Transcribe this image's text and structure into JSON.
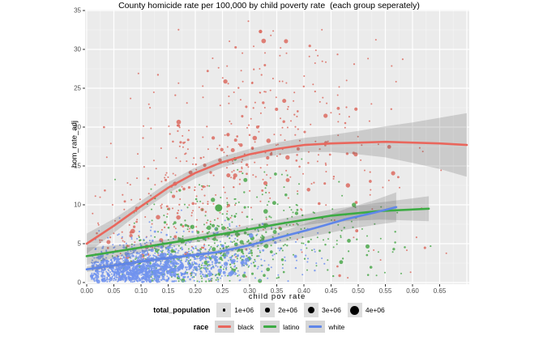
{
  "chart_data": {
    "type": "scatter",
    "title": "County homicide rate per 100,000 by child poverty rate  (each group seperately)",
    "xlabel": "child pov rate",
    "ylabel": "hom_rate_adj",
    "xlim": [
      0,
      0.7
    ],
    "ylim": [
      0,
      35
    ],
    "panel_bg": "#EBEBEB",
    "grid": {
      "major_color": "#FFFFFF",
      "minor_color": "#F4F4F4",
      "legend_position": "bottom"
    },
    "x_ticks": [
      {
        "v": 0.0,
        "label": "0.00"
      },
      {
        "v": 0.05,
        "label": "0.05"
      },
      {
        "v": 0.1,
        "label": "0.10"
      },
      {
        "v": 0.15,
        "label": "0.15"
      },
      {
        "v": 0.2,
        "label": "0.20"
      },
      {
        "v": 0.25,
        "label": "0.25"
      },
      {
        "v": 0.3,
        "label": "0.30"
      },
      {
        "v": 0.35,
        "label": "0.35"
      },
      {
        "v": 0.4,
        "label": "0.40"
      },
      {
        "v": 0.45,
        "label": "0.45"
      },
      {
        "v": 0.5,
        "label": "0.50"
      },
      {
        "v": 0.55,
        "label": "0.55"
      },
      {
        "v": 0.6,
        "label": "0.60"
      },
      {
        "v": 0.65,
        "label": "0.65"
      },
      {
        "v": 0.7,
        "label": ""
      }
    ],
    "y_ticks": [
      {
        "v": 0,
        "label": "0"
      },
      {
        "v": 5,
        "label": "5"
      },
      {
        "v": 10,
        "label": "10"
      },
      {
        "v": 15,
        "label": "15"
      },
      {
        "v": 20,
        "label": "20"
      },
      {
        "v": 25,
        "label": "25"
      },
      {
        "v": 30,
        "label": "30"
      },
      {
        "v": 35,
        "label": "35"
      }
    ],
    "band_fill": "rgba(90,90,90,0.22)",
    "series": [
      {
        "name": "black",
        "point_color": "#DC6B60",
        "line_color": "#E9675D",
        "smooth": {
          "x": [
            0,
            0.05,
            0.1,
            0.15,
            0.2,
            0.25,
            0.3,
            0.35,
            0.4,
            0.45,
            0.5,
            0.55,
            0.6,
            0.65,
            0.7
          ],
          "y": [
            5.0,
            7.3,
            9.8,
            12.2,
            14.1,
            15.5,
            16.5,
            17.2,
            17.7,
            17.9,
            18.0,
            18.1,
            18.0,
            17.9,
            17.7
          ],
          "ci": [
            1.3,
            0.9,
            0.7,
            0.7,
            0.7,
            0.7,
            0.7,
            0.8,
            0.9,
            1.1,
            1.5,
            2.0,
            2.6,
            3.3,
            4.1
          ]
        },
        "cloud": [
          {
            "cx": 0.18,
            "cy": 8,
            "sx": 0.08,
            "sy": 4,
            "n": 120
          },
          {
            "cx": 0.25,
            "cy": 15,
            "sx": 0.1,
            "sy": 5,
            "n": 140
          },
          {
            "cx": 0.35,
            "cy": 19,
            "sx": 0.11,
            "sy": 5.5,
            "n": 110
          },
          {
            "cx": 0.45,
            "cy": 14,
            "sx": 0.11,
            "sy": 6.5,
            "n": 70
          },
          {
            "cx": 0.3,
            "cy": 27,
            "sx": 0.1,
            "sy": 4,
            "n": 45
          },
          {
            "cx": 0.08,
            "cy": 4.5,
            "sx": 0.045,
            "sy": 2.5,
            "n": 50
          }
        ],
        "clip": {
          "x": [
            0.01,
            0.695
          ],
          "y": [
            0.15,
            34.5
          ]
        }
      },
      {
        "name": "latino",
        "point_color": "#4BA84B",
        "line_color": "#3DAB44",
        "smooth": {
          "x": [
            0,
            0.09,
            0.18,
            0.27,
            0.36,
            0.45,
            0.54,
            0.63
          ],
          "y": [
            3.4,
            4.4,
            5.4,
            6.5,
            7.6,
            8.6,
            9.2,
            9.5
          ],
          "ci": [
            1.1,
            0.6,
            0.45,
            0.5,
            0.6,
            0.8,
            1.1,
            1.6
          ]
        },
        "cloud": [
          {
            "cx": 0.16,
            "cy": 2.6,
            "sx": 0.06,
            "sy": 1.4,
            "n": 170
          },
          {
            "cx": 0.24,
            "cy": 4.8,
            "sx": 0.08,
            "sy": 2.2,
            "n": 170
          },
          {
            "cx": 0.33,
            "cy": 6.5,
            "sx": 0.09,
            "sy": 2.8,
            "n": 120
          },
          {
            "cx": 0.28,
            "cy": 10.5,
            "sx": 0.09,
            "sy": 2.6,
            "n": 50
          },
          {
            "cx": 0.46,
            "cy": 5.5,
            "sx": 0.08,
            "sy": 2.2,
            "n": 50
          }
        ],
        "clip": {
          "x": [
            0.02,
            0.635
          ],
          "y": [
            0.12,
            16
          ]
        }
      },
      {
        "name": "white",
        "point_color": "#7193EE",
        "line_color": "#5F86E9",
        "smooth": {
          "x": [
            0,
            0.06,
            0.12,
            0.18,
            0.24,
            0.3,
            0.36,
            0.42,
            0.48,
            0.53,
            0.57
          ],
          "y": [
            1.7,
            2.3,
            2.9,
            3.4,
            3.9,
            4.8,
            5.9,
            7.0,
            8.2,
            9.0,
            9.7
          ],
          "ci": [
            0.35,
            0.22,
            0.2,
            0.22,
            0.3,
            0.45,
            0.7,
            1.0,
            1.35,
            1.6,
            1.9
          ]
        },
        "cloud": [
          {
            "cx": 0.085,
            "cy": 1.5,
            "sx": 0.045,
            "sy": 0.9,
            "n": 700
          },
          {
            "cx": 0.14,
            "cy": 2.2,
            "sx": 0.06,
            "sy": 1.1,
            "n": 380
          },
          {
            "cx": 0.22,
            "cy": 2.8,
            "sx": 0.07,
            "sy": 1.5,
            "n": 200
          },
          {
            "cx": 0.1,
            "cy": 4.2,
            "sx": 0.05,
            "sy": 1.6,
            "n": 90
          },
          {
            "cx": 0.3,
            "cy": 4.5,
            "sx": 0.09,
            "sy": 2.0,
            "n": 60
          }
        ],
        "clip": {
          "x": [
            0.008,
            0.46
          ],
          "y": [
            0.08,
            11
          ]
        }
      }
    ],
    "highlight_points": [
      {
        "series": "latino",
        "x": 0.243,
        "y": 9.6,
        "r": 4.5
      },
      {
        "series": "latino",
        "x": 0.273,
        "y": 15.9,
        "r": 2.2
      },
      {
        "series": "black",
        "x": 0.32,
        "y": 32.3,
        "r": 2.2
      }
    ],
    "legend": {
      "size": {
        "title": "total_population",
        "items": [
          {
            "label": "1e+06",
            "d": 3.5
          },
          {
            "label": "2e+06",
            "d": 5.5
          },
          {
            "label": "3e+06",
            "d": 8
          },
          {
            "label": "4e+06",
            "d": 11
          }
        ]
      },
      "race": {
        "title": "race",
        "items": [
          {
            "label": "black",
            "color": "#E9675D"
          },
          {
            "label": "latino",
            "color": "#3DAB44"
          },
          {
            "label": "white",
            "color": "#5F86E9"
          }
        ]
      }
    }
  }
}
